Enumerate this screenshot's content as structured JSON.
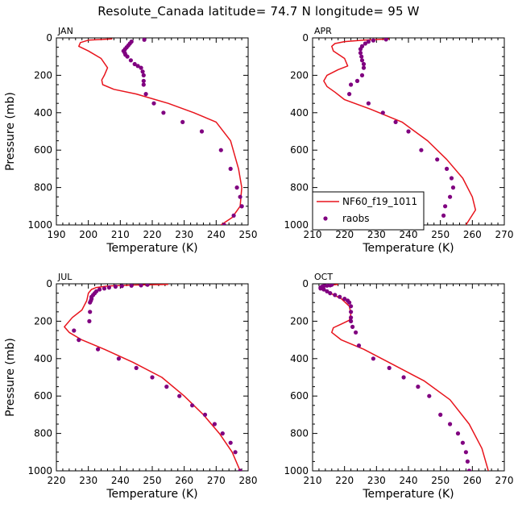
{
  "figure": {
    "title": "Resolute_Canada  latitude= 74.7 N longitude= 95 W"
  },
  "legend": {
    "model_label": "NF60_f19_1011",
    "obs_label": "raobs"
  },
  "colors": {
    "model_line": "#e8141c",
    "obs_points": "#800080"
  },
  "chart_data": [
    {
      "type": "line",
      "panel": "JAN",
      "xlabel": "Temperature (K)",
      "ylabel": "Pressure (mb)",
      "xlim": [
        190,
        250
      ],
      "ylim": [
        1000,
        0
      ],
      "xticks": [
        190,
        200,
        210,
        220,
        230,
        240,
        250
      ],
      "yticks": [
        0,
        200,
        400,
        600,
        800,
        1000
      ],
      "series": [
        {
          "name": "NF60_f19_1011",
          "kind": "line",
          "x": [
            207.5,
            200,
            197.5,
            197,
            200,
            204,
            206,
            205,
            204.2,
            204.5,
            208,
            215,
            225,
            233,
            240,
            244.5,
            247,
            248,
            247.5,
            245,
            241.5
          ],
          "y": [
            5,
            12,
            25,
            45,
            70,
            110,
            160,
            200,
            225,
            250,
            275,
            300,
            350,
            400,
            450,
            550,
            700,
            800,
            900,
            960,
            1000
          ]
        },
        {
          "name": "raobs",
          "kind": "points",
          "x": [
            217.5,
            213.5,
            213,
            212.5,
            212,
            211.5,
            211,
            211.4,
            211.6,
            212.2,
            213.3,
            214.5,
            215.5,
            216.5,
            217,
            217.3,
            217.3,
            217.3,
            218,
            220.5,
            223.5,
            229.5,
            235.5,
            241.5,
            244.5,
            246.5,
            247.5,
            248,
            248,
            245.5,
            242.5
          ],
          "y": [
            10,
            20,
            30,
            40,
            50,
            60,
            70,
            80,
            90,
            100,
            120,
            140,
            150,
            160,
            180,
            200,
            230,
            250,
            300,
            350,
            400,
            450,
            500,
            600,
            700,
            800,
            850,
            900,
            900,
            950,
            1000
          ]
        }
      ]
    },
    {
      "type": "line",
      "panel": "APR",
      "xlabel": "Temperature (K)",
      "ylabel": "",
      "xlim": [
        210,
        270
      ],
      "ylim": [
        1000,
        0
      ],
      "xticks": [
        210,
        220,
        230,
        240,
        250,
        260,
        270
      ],
      "yticks": [
        0,
        200,
        400,
        600,
        800,
        1000
      ],
      "series": [
        {
          "name": "NF60_f19_1011",
          "kind": "line",
          "x": [
            234,
            226,
            220,
            217,
            216,
            216.5,
            220,
            221,
            218,
            214.5,
            213.5,
            214.5,
            217,
            220,
            228,
            238,
            246,
            252,
            257,
            260,
            261,
            258
          ],
          "y": [
            5,
            12,
            20,
            30,
            45,
            70,
            110,
            150,
            170,
            200,
            230,
            260,
            290,
            330,
            380,
            450,
            550,
            650,
            750,
            850,
            920,
            1000
          ]
        },
        {
          "name": "raobs",
          "kind": "points",
          "x": [
            233,
            229,
            227.5,
            226.5,
            225.5,
            225,
            225,
            225.3,
            225.5,
            226,
            226,
            225.5,
            224,
            222,
            221.5,
            227.5,
            232,
            236,
            240,
            244,
            249,
            252,
            253.5,
            254,
            253,
            251.5,
            251
          ],
          "y": [
            8,
            14,
            20,
            30,
            45,
            60,
            80,
            100,
            120,
            140,
            160,
            200,
            230,
            250,
            300,
            350,
            400,
            450,
            500,
            600,
            650,
            700,
            750,
            800,
            850,
            900,
            950
          ]
        }
      ]
    },
    {
      "type": "line",
      "panel": "JUL",
      "xlabel": "Temperature (K)",
      "ylabel": "Pressure (mb)",
      "xlim": [
        220,
        280
      ],
      "ylim": [
        1000,
        0
      ],
      "xticks": [
        220,
        230,
        240,
        250,
        260,
        270,
        280
      ],
      "yticks": [
        0,
        200,
        400,
        600,
        800,
        1000
      ],
      "series": [
        {
          "name": "NF60_f19_1011",
          "kind": "line",
          "x": [
            255,
            243,
            236,
            232.5,
            231,
            230,
            229.5,
            228,
            225,
            222.5,
            224,
            228,
            235,
            244,
            253,
            260,
            266,
            271,
            275,
            277.5
          ],
          "y": [
            3,
            7,
            12,
            20,
            30,
            50,
            90,
            140,
            180,
            230,
            260,
            300,
            350,
            420,
            500,
            600,
            700,
            800,
            900,
            1000
          ]
        },
        {
          "name": "raobs",
          "kind": "points",
          "x": [
            248.5,
            246.5,
            243.5,
            240.5,
            238.5,
            236.5,
            235,
            233.5,
            232.5,
            232,
            231.5,
            231,
            231,
            230.8,
            230.5,
            230.5,
            230.3,
            225.5,
            227,
            233,
            239.5,
            245,
            250,
            254.5,
            258.5,
            262.5,
            266.5,
            269.5,
            272,
            274.5,
            276,
            277.5
          ],
          "y": [
            5,
            8,
            10,
            12,
            15,
            20,
            25,
            30,
            40,
            50,
            60,
            70,
            80,
            90,
            100,
            150,
            200,
            250,
            300,
            350,
            400,
            450,
            500,
            550,
            600,
            650,
            700,
            750,
            800,
            850,
            900,
            1000
          ]
        }
      ]
    },
    {
      "type": "line",
      "panel": "OCT",
      "xlabel": "Temperature (K)",
      "ylabel": "",
      "xlim": [
        210,
        270
      ],
      "ylim": [
        1000,
        0
      ],
      "xticks": [
        210,
        220,
        230,
        240,
        250,
        260,
        270
      ],
      "yticks": [
        0,
        200,
        400,
        600,
        800,
        1000
      ],
      "series": [
        {
          "name": "NF60_f19_1011",
          "kind": "line",
          "x": [
            218,
            215,
            213,
            212.5,
            215,
            219,
            221.5,
            222,
            221.5,
            219,
            216.5,
            216,
            219,
            226,
            235,
            245,
            253,
            259,
            263,
            265
          ],
          "y": [
            3,
            8,
            15,
            25,
            45,
            80,
            120,
            160,
            195,
            215,
            235,
            260,
            300,
            350,
            430,
            520,
            620,
            750,
            880,
            1000
          ]
        },
        {
          "name": "raobs",
          "kind": "points",
          "x": [
            216,
            215.5,
            214.5,
            213.5,
            213,
            212.5,
            212.5,
            213.5,
            214.5,
            215.5,
            217,
            218.5,
            220,
            221,
            221.5,
            222,
            222,
            222,
            222,
            222.5,
            223.5,
            224.5,
            229,
            234,
            238.5,
            243,
            246.5,
            250,
            253,
            255.5,
            257,
            258,
            258.5,
            259,
            259
          ],
          "y": [
            5,
            8,
            10,
            12,
            15,
            20,
            25,
            30,
            40,
            50,
            60,
            70,
            80,
            90,
            100,
            120,
            150,
            180,
            200,
            230,
            260,
            330,
            400,
            450,
            500,
            550,
            600,
            700,
            750,
            800,
            850,
            900,
            950,
            1000,
            1000
          ]
        }
      ]
    }
  ]
}
